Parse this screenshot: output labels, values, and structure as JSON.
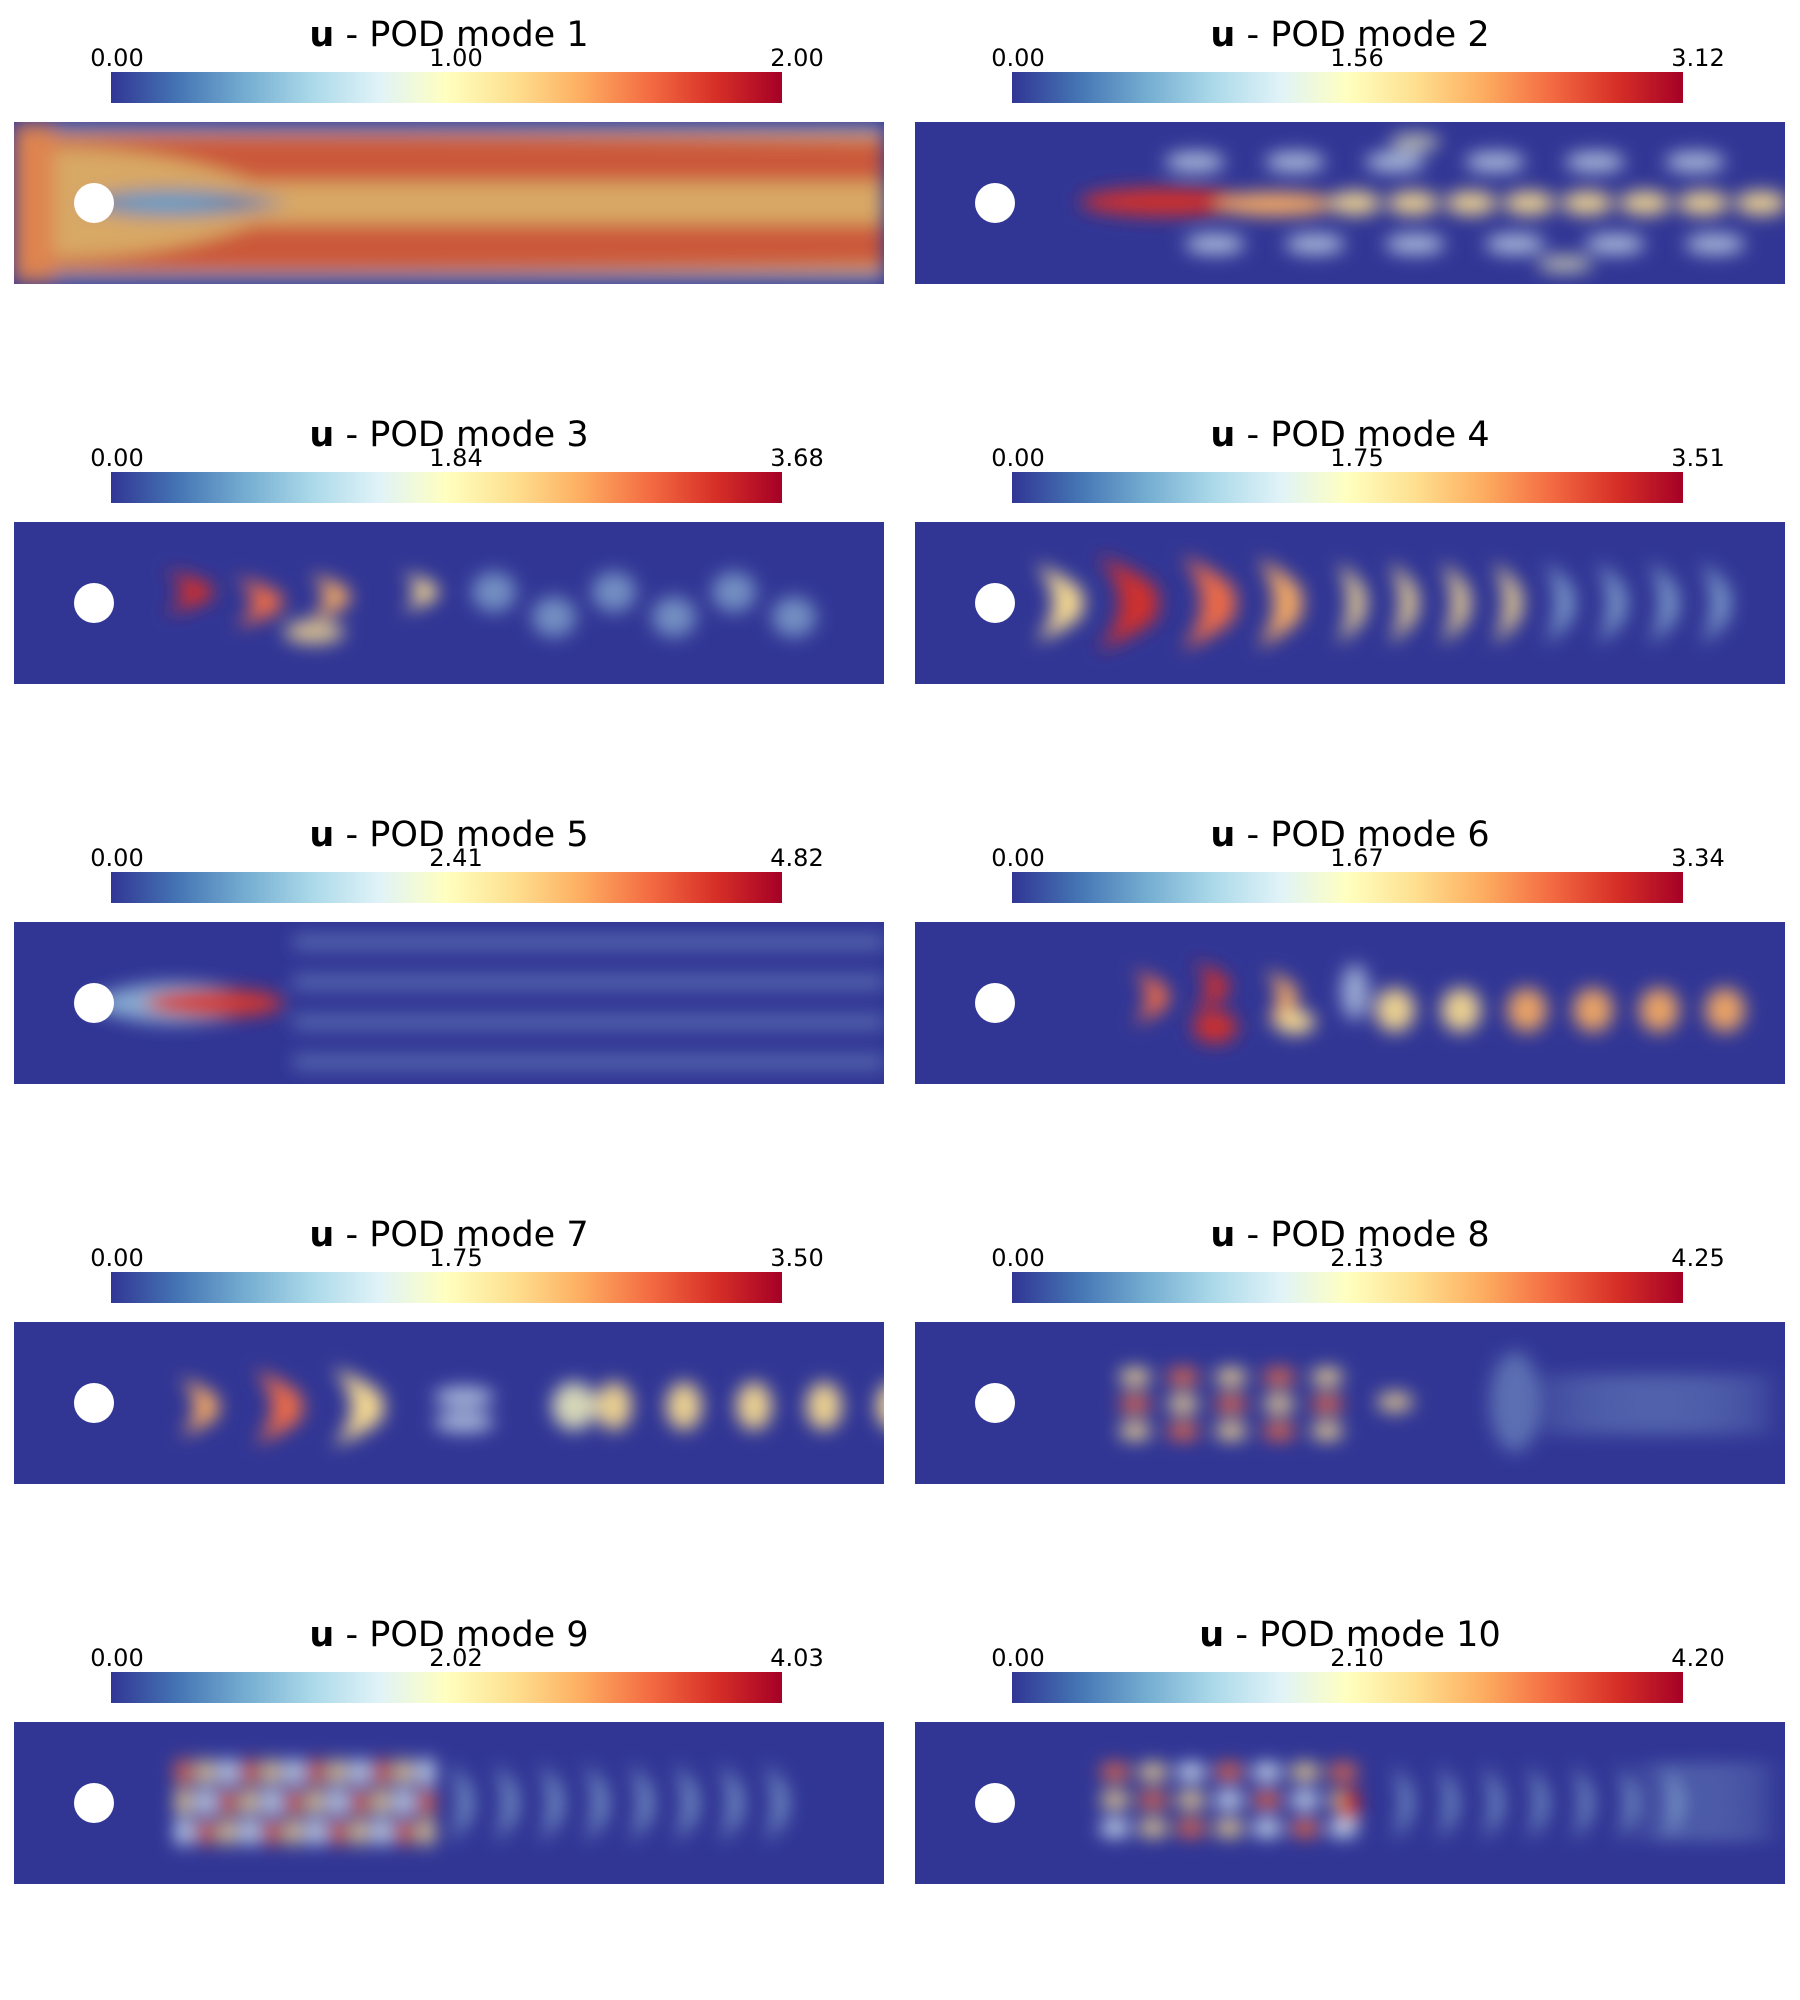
{
  "colormap": [
    "#313695",
    "#4575b4",
    "#74add1",
    "#abd9e9",
    "#e0f3f8",
    "#ffffbf",
    "#fee090",
    "#fdae61",
    "#f46d43",
    "#d73027",
    "#a50026"
  ],
  "background_color": "#313695",
  "cylinder_color": "#ffffff",
  "panels": [
    {
      "variable": "u",
      "title": "- POD mode 1",
      "ticks": [
        "0.00",
        "1.00",
        "2.00"
      ]
    },
    {
      "variable": "u",
      "title": "- POD mode 2",
      "ticks": [
        "0.00",
        "1.56",
        "3.12"
      ]
    },
    {
      "variable": "u",
      "title": "- POD mode 3",
      "ticks": [
        "0.00",
        "1.84",
        "3.68"
      ]
    },
    {
      "variable": "u",
      "title": "- POD mode 4",
      "ticks": [
        "0.00",
        "1.75",
        "3.51"
      ]
    },
    {
      "variable": "u",
      "title": "- POD mode 5",
      "ticks": [
        "0.00",
        "2.41",
        "4.82"
      ]
    },
    {
      "variable": "u",
      "title": "- POD mode 6",
      "ticks": [
        "0.00",
        "1.67",
        "3.34"
      ]
    },
    {
      "variable": "u",
      "title": "- POD mode 7",
      "ticks": [
        "0.00",
        "1.75",
        "3.50"
      ]
    },
    {
      "variable": "u",
      "title": "- POD mode 8",
      "ticks": [
        "0.00",
        "2.13",
        "4.25"
      ]
    },
    {
      "variable": "u",
      "title": "- POD mode 9",
      "ticks": [
        "0.00",
        "2.02",
        "4.03"
      ]
    },
    {
      "variable": "u",
      "title": "- POD mode 10",
      "ticks": [
        "0.00",
        "2.10",
        "4.20"
      ]
    }
  ]
}
